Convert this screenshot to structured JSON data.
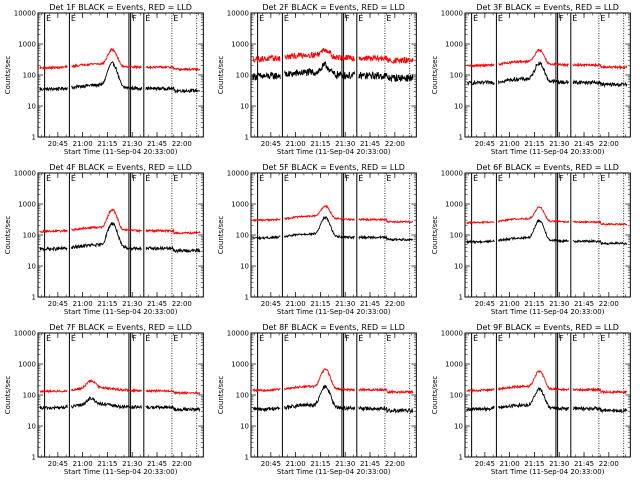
{
  "chart_data": [
    {
      "type": "line",
      "title": "Det 1F BLACK = Events, RED = LLD",
      "xlabel": "Start Time (11-Sep-04 20:33:00)",
      "ylabel": "Counts/sec",
      "ylog": true,
      "ylim": [
        1,
        10000
      ],
      "xtick_labels": [
        "20:45",
        "21:00",
        "21:15",
        "21:30",
        "21:45",
        "22:00"
      ],
      "ytick_labels": [
        "1",
        "10",
        "100",
        "1000",
        "10000"
      ],
      "series": [
        {
          "color": "#000000",
          "base": 35,
          "peak": 230,
          "peak_time": "21:18",
          "jitter": 0.12
        },
        {
          "color": "#ff0000",
          "base": 170,
          "peak": 620,
          "peak_time": "21:18",
          "jitter": 0.08
        }
      ]
    },
    {
      "type": "line",
      "title": "Det 2F BLACK = Events, RED = LLD",
      "xlabel": "Start Time (11-Sep-04 20:33:00)",
      "ylabel": "Counts/sec",
      "ylog": true,
      "ylim": [
        1,
        10000
      ],
      "xtick_labels": [
        "20:45",
        "21:00",
        "21:15",
        "21:30",
        "21:45",
        "22:00"
      ],
      "ytick_labels": [
        "1",
        "10",
        "100",
        "1000",
        "10000"
      ],
      "series": [
        {
          "color": "#000000",
          "base": 90,
          "peak": 180,
          "peak_time": "21:18",
          "jitter": 0.28
        },
        {
          "color": "#ff0000",
          "base": 330,
          "peak": 600,
          "peak_time": "21:18",
          "jitter": 0.22
        }
      ]
    },
    {
      "type": "line",
      "title": "Det 3F BLACK = Events, RED = LLD",
      "xlabel": "Start Time (11-Sep-04 20:33:00)",
      "ylabel": "Counts/sec",
      "ylog": true,
      "ylim": [
        1,
        10000
      ],
      "xtick_labels": [
        "20:45",
        "21:00",
        "21:15",
        "21:30",
        "21:45",
        "22:00"
      ],
      "ytick_labels": [
        "1",
        "10",
        "100",
        "1000",
        "10000"
      ],
      "series": [
        {
          "color": "#000000",
          "base": 55,
          "peak": 230,
          "peak_time": "21:18",
          "jitter": 0.14
        },
        {
          "color": "#ff0000",
          "base": 200,
          "peak": 600,
          "peak_time": "21:18",
          "jitter": 0.08
        }
      ]
    },
    {
      "type": "line",
      "title": "Det 4F BLACK = Events, RED = LLD",
      "xlabel": "Start Time (11-Sep-04 20:33:00)",
      "ylabel": "Counts/sec",
      "ylog": true,
      "ylim": [
        1,
        10000
      ],
      "xtick_labels": [
        "20:45",
        "21:00",
        "21:15",
        "21:30",
        "21:45",
        "22:00"
      ],
      "ytick_labels": [
        "1",
        "10",
        "100",
        "1000",
        "10000"
      ],
      "series": [
        {
          "color": "#000000",
          "base": 35,
          "peak": 230,
          "peak_time": "21:18",
          "jitter": 0.12
        },
        {
          "color": "#ff0000",
          "base": 130,
          "peak": 620,
          "peak_time": "21:18",
          "jitter": 0.08
        }
      ]
    },
    {
      "type": "line",
      "title": "Det 5F BLACK = Events, RED = LLD",
      "xlabel": "Start Time (11-Sep-04 20:33:00)",
      "ylabel": "Counts/sec",
      "ylog": true,
      "ylim": [
        1,
        10000
      ],
      "xtick_labels": [
        "20:45",
        "21:00",
        "21:15",
        "21:30",
        "21:45",
        "22:00"
      ],
      "ytick_labels": [
        "1",
        "10",
        "100",
        "1000",
        "10000"
      ],
      "series": [
        {
          "color": "#000000",
          "base": 80,
          "peak": 350,
          "peak_time": "21:18",
          "jitter": 0.08
        },
        {
          "color": "#ff0000",
          "base": 300,
          "peak": 800,
          "peak_time": "21:18",
          "jitter": 0.06
        }
      ]
    },
    {
      "type": "line",
      "title": "Det 6F BLACK = Events, RED = LLD",
      "xlabel": "Start Time (11-Sep-04 20:33:00)",
      "ylabel": "Counts/sec",
      "ylog": true,
      "ylim": [
        1,
        10000
      ],
      "xtick_labels": [
        "20:45",
        "21:00",
        "21:15",
        "21:30",
        "21:45",
        "22:00"
      ],
      "ytick_labels": [
        "1",
        "10",
        "100",
        "1000",
        "10000"
      ],
      "series": [
        {
          "color": "#000000",
          "base": 60,
          "peak": 280,
          "peak_time": "21:18",
          "jitter": 0.08
        },
        {
          "color": "#ff0000",
          "base": 250,
          "peak": 750,
          "peak_time": "21:18",
          "jitter": 0.06
        }
      ]
    },
    {
      "type": "line",
      "title": "Det 7F BLACK = Events, RED = LLD",
      "xlabel": "Start Time (11-Sep-04 20:33:00)",
      "ylabel": "Counts/sec",
      "ylog": true,
      "ylim": [
        1,
        10000
      ],
      "xtick_labels": [
        "20:45",
        "21:00",
        "21:15",
        "21:30",
        "21:45",
        "22:00"
      ],
      "ytick_labels": [
        "1",
        "10",
        "100",
        "1000",
        "10000"
      ],
      "series": [
        {
          "color": "#000000",
          "base": 38,
          "peak": 65,
          "peak_time": "21:05",
          "jitter": 0.12
        },
        {
          "color": "#ff0000",
          "base": 130,
          "peak": 250,
          "peak_time": "21:05",
          "jitter": 0.08
        }
      ]
    },
    {
      "type": "line",
      "title": "Det 8F BLACK = Events, RED = LLD",
      "xlabel": "Start Time (11-Sep-04 20:33:00)",
      "ylabel": "Counts/sec",
      "ylog": true,
      "ylim": [
        1,
        10000
      ],
      "xtick_labels": [
        "20:45",
        "21:00",
        "21:15",
        "21:30",
        "21:45",
        "22:00"
      ],
      "ytick_labels": [
        "1",
        "10",
        "100",
        "1000",
        "10000"
      ],
      "series": [
        {
          "color": "#000000",
          "base": 35,
          "peak": 180,
          "peak_time": "21:18",
          "jitter": 0.14
        },
        {
          "color": "#ff0000",
          "base": 140,
          "peak": 650,
          "peak_time": "21:18",
          "jitter": 0.08
        }
      ]
    },
    {
      "type": "line",
      "title": "Det 9F BLACK = Events, RED = LLD",
      "xlabel": "Start Time (11-Sep-04 20:33:00)",
      "ylabel": "Counts/sec",
      "ylog": true,
      "ylim": [
        1,
        10000
      ],
      "xtick_labels": [
        "20:45",
        "21:00",
        "21:15",
        "21:30",
        "21:45",
        "22:00"
      ],
      "ytick_labels": [
        "1",
        "10",
        "100",
        "1000",
        "10000"
      ],
      "series": [
        {
          "color": "#000000",
          "base": 35,
          "peak": 150,
          "peak_time": "21:18",
          "jitter": 0.12
        },
        {
          "color": "#ff0000",
          "base": 140,
          "peak": 550,
          "peak_time": "21:18",
          "jitter": 0.08
        }
      ]
    }
  ],
  "markers": {
    "solid": [
      {
        "time": "20:37",
        "label": "E"
      },
      {
        "time": "20:52",
        "label": "E"
      },
      {
        "time": "21:28",
        "label": ""
      },
      {
        "time": "21:29",
        "label": "F"
      },
      {
        "time": "21:37",
        "label": "E"
      }
    ],
    "dotted": [
      {
        "time": "21:54",
        "label": "E"
      },
      {
        "time": "22:09",
        "label": ""
      }
    ]
  }
}
